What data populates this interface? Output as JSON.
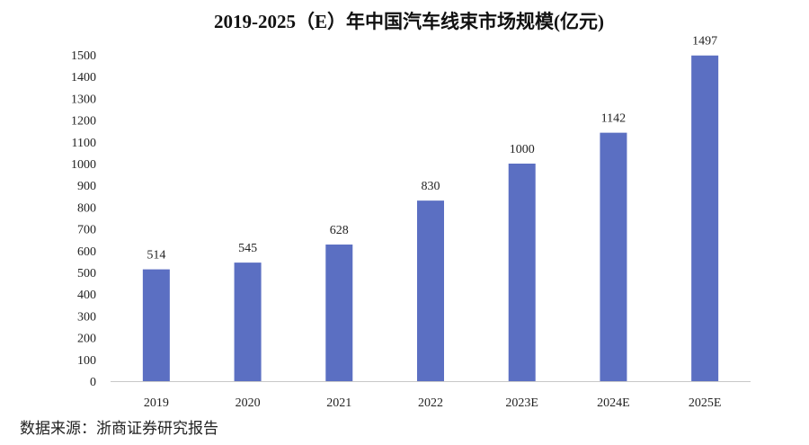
{
  "chart_data": {
    "type": "bar",
    "title": "2019-2025（E）年中国汽车线束市场规模(亿元)",
    "categories": [
      "2019",
      "2020",
      "2021",
      "2022",
      "2023E",
      "2024E",
      "2025E"
    ],
    "values": [
      514,
      545,
      628,
      830,
      1000,
      1142,
      1497
    ],
    "data_labels": [
      "514",
      "545",
      "628",
      "830",
      "1000",
      "1142",
      "1497"
    ],
    "ylim": [
      0,
      1500
    ],
    "ytick_step": 100,
    "xlabel": "",
    "ylabel": "",
    "grid": false,
    "legend": "none",
    "bar_color": "#5B6FC2"
  },
  "source": "数据来源：浙商证券研究报告"
}
